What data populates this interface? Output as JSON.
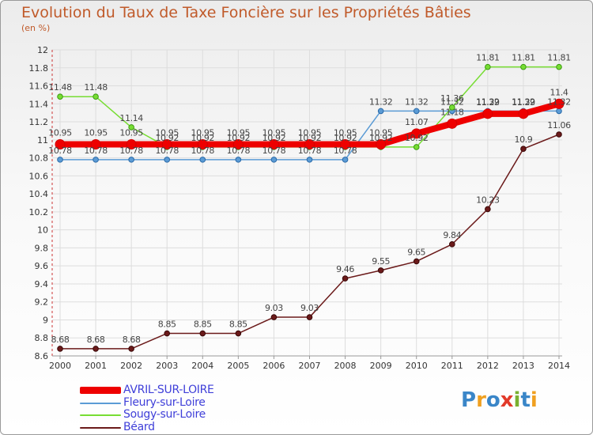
{
  "header": {
    "title": "Evolution du Taux de Taxe Foncière sur les Propriétés Bâties",
    "unit": "(en %)"
  },
  "branding": {
    "logo_text": "Proxiti"
  },
  "colors": {
    "series": [
      "#ee0000",
      "#5b9bd5",
      "#77dd33",
      "#6b1a1a"
    ],
    "logo": [
      "#3a86c8",
      "#f0a020",
      "#3a86c8",
      "#e23a2a",
      "#7ab030",
      "#3a86c8",
      "#f0a020"
    ],
    "title": "#c05a2a",
    "legend_text": "#3f3fd9",
    "axis_text": "#333333",
    "grid": "#dddddd"
  },
  "chart_data": {
    "type": "line",
    "title": "Evolution du Taux de Taxe Foncière sur les Propriétés Bâties",
    "ylabel": "(en %)",
    "xlabel": "",
    "x": [
      "2000",
      "2001",
      "2002",
      "2003",
      "2004",
      "2005",
      "2006",
      "2007",
      "2008",
      "2009",
      "2010",
      "2011",
      "2012",
      "2013",
      "2014"
    ],
    "ylim": [
      8.6,
      12
    ],
    "yticks": [
      8.6,
      8.8,
      9,
      9.2,
      9.4,
      9.6,
      9.8,
      10,
      10.2,
      10.4,
      10.6,
      10.8,
      11,
      11.2,
      11.4,
      11.6,
      11.8,
      12
    ],
    "ytick_labels": [
      "8.6",
      "8.8",
      "9",
      "9.2",
      "9.4",
      "9.6",
      "9.8",
      "10",
      "10.2",
      "10.4",
      "10.6",
      "10.8",
      "11",
      "11.2",
      "11.4",
      "11.6",
      "11.8",
      "12"
    ],
    "grid": true,
    "legend_position": "bottom-left",
    "series": [
      {
        "name": "AVRIL-SUR-LOIRE",
        "values": [
          10.95,
          10.95,
          10.95,
          10.95,
          10.95,
          10.95,
          10.95,
          10.95,
          10.95,
          10.95,
          11.07,
          11.18,
          11.29,
          11.29,
          11.4
        ],
        "labels": [
          "10.95",
          "10.95",
          "10.95",
          "10.95",
          "10.95",
          "10.95",
          "10.95",
          "10.95",
          "10.95",
          "10.95",
          "11.07",
          "11.18",
          "11.29",
          "11.29",
          "11.4"
        ]
      },
      {
        "name": "Fleury-sur-Loire",
        "values": [
          10.78,
          10.78,
          10.78,
          10.78,
          10.78,
          10.78,
          10.78,
          10.78,
          10.78,
          11.32,
          11.32,
          11.32,
          11.32,
          11.32,
          11.32
        ],
        "labels": [
          "10.78",
          "10.78",
          "10.78",
          "10.78",
          "10.78",
          "10.78",
          "10.78",
          "10.78",
          "10.78",
          "11.32",
          "11.32",
          "11.32",
          "11.32",
          "11.32",
          "11.32"
        ]
      },
      {
        "name": "Sougy-sur-Loire",
        "values": [
          11.48,
          11.48,
          11.14,
          10.92,
          10.92,
          10.92,
          10.92,
          10.92,
          10.92,
          10.92,
          10.92,
          11.36,
          11.81,
          11.81,
          11.81
        ],
        "labels": [
          "11.48",
          "11.48",
          "11.14",
          "10.92",
          "10.92",
          "10.92",
          "10.92",
          "10.92",
          "10.92",
          "10.92",
          "10.92",
          "11.36",
          "11.81",
          "11.81",
          "11.81"
        ]
      },
      {
        "name": "Béard",
        "values": [
          8.68,
          8.68,
          8.68,
          8.85,
          8.85,
          8.85,
          9.03,
          9.03,
          9.46,
          9.55,
          9.65,
          9.84,
          10.23,
          10.9,
          11.06
        ],
        "labels": [
          "8.68",
          "8.68",
          "8.68",
          "8.85",
          "8.85",
          "8.85",
          "9.03",
          "9.03",
          "9.46",
          "9.55",
          "9.65",
          "9.84",
          "10.23",
          "10.9",
          "11.06"
        ]
      }
    ]
  }
}
